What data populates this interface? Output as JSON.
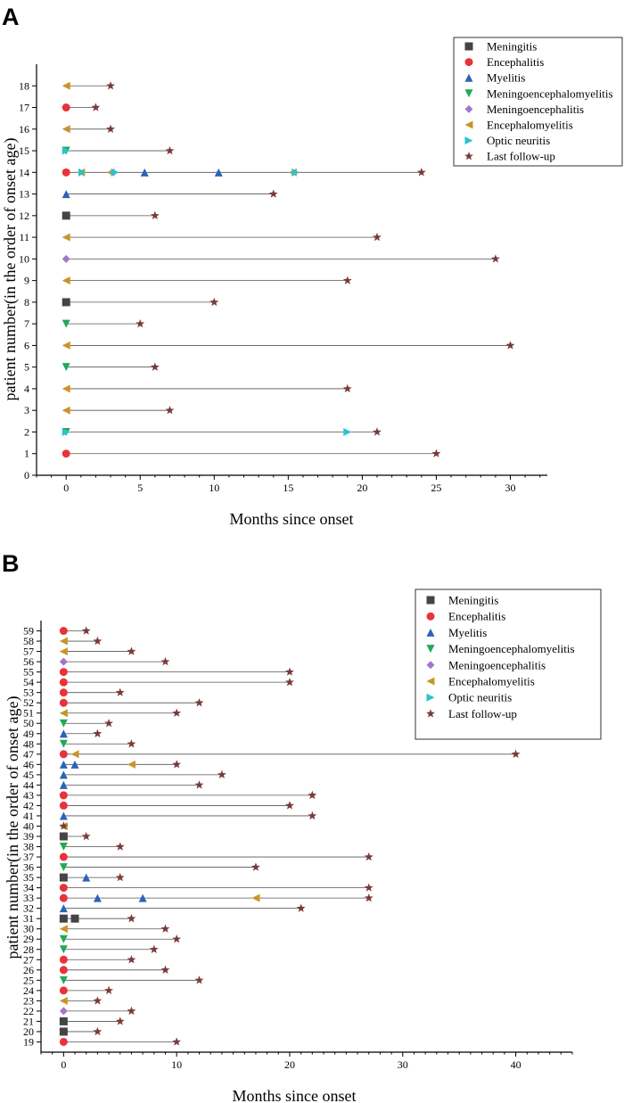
{
  "panels": [
    {
      "label": "A"
    },
    {
      "label": "B"
    }
  ],
  "colors": {
    "Meningitis": "#444444",
    "Encephalitis": "#e8333a",
    "Myelitis": "#2b63b8",
    "Meningoencephalomyelitis": "#22a858",
    "Meningoencephalitis": "#a277c9",
    "Encephalomyelitis": "#c9952a",
    "Optic neuritis": "#2fc1d0",
    "Last follow-up": "#7a3a3a"
  },
  "chart_data": [
    {
      "type": "scatter",
      "title": "",
      "xlabel": "Months since onset",
      "ylabel": "patient number(in the order of onset age)",
      "xlim": [
        -2,
        32.5
      ],
      "ylim": [
        0,
        19
      ],
      "xticks": [
        0,
        5,
        10,
        15,
        20,
        25,
        30
      ],
      "yticks": [
        0,
        1,
        2,
        3,
        4,
        5,
        6,
        7,
        8,
        9,
        10,
        11,
        12,
        13,
        14,
        15,
        16,
        17,
        18
      ],
      "legend": [
        "Meningitis",
        "Encephalitis",
        "Myelitis",
        "Meningoencephalomyelitis",
        "Meningoencephalitis",
        "Encephalomyelitis",
        "Optic neuritis",
        "Last follow-up"
      ],
      "legend_position": "top-right",
      "patients": [
        {
          "id": 1,
          "events": [
            {
              "t": 0,
              "type": "Encephalitis"
            }
          ],
          "last": 25
        },
        {
          "id": 2,
          "events": [
            {
              "t": 0,
              "type": "Meningoencephalomyelitis"
            },
            {
              "t": 0,
              "type": "Optic neuritis"
            },
            {
              "t": 19,
              "type": "Optic neuritis"
            }
          ],
          "last": 21
        },
        {
          "id": 3,
          "events": [
            {
              "t": 0,
              "type": "Encephalomyelitis"
            }
          ],
          "last": 7
        },
        {
          "id": 4,
          "events": [
            {
              "t": 0,
              "type": "Encephalomyelitis"
            }
          ],
          "last": 19
        },
        {
          "id": 5,
          "events": [
            {
              "t": 0,
              "type": "Meningoencephalomyelitis"
            }
          ],
          "last": 6
        },
        {
          "id": 6,
          "events": [
            {
              "t": 0,
              "type": "Encephalomyelitis"
            }
          ],
          "last": 30
        },
        {
          "id": 7,
          "events": [
            {
              "t": 0,
              "type": "Meningoencephalomyelitis"
            }
          ],
          "last": 5
        },
        {
          "id": 8,
          "events": [
            {
              "t": 0,
              "type": "Meningitis"
            }
          ],
          "last": 10
        },
        {
          "id": 9,
          "events": [
            {
              "t": 0,
              "type": "Encephalomyelitis"
            }
          ],
          "last": 19
        },
        {
          "id": 10,
          "events": [
            {
              "t": 0,
              "type": "Meningoencephalitis"
            }
          ],
          "last": 29
        },
        {
          "id": 11,
          "events": [
            {
              "t": 0,
              "type": "Encephalomyelitis"
            }
          ],
          "last": 21
        },
        {
          "id": 12,
          "events": [
            {
              "t": 0,
              "type": "Meningitis"
            }
          ],
          "last": 6
        },
        {
          "id": 13,
          "events": [
            {
              "t": 0,
              "type": "Myelitis"
            }
          ],
          "last": 14
        },
        {
          "id": 14,
          "events": [
            {
              "t": 0,
              "type": "Encephalitis"
            },
            {
              "t": 1,
              "type": "Encephalomyelitis"
            },
            {
              "t": 1.1,
              "type": "Optic neuritis"
            },
            {
              "t": 3,
              "type": "Encephalomyelitis"
            },
            {
              "t": 3.3,
              "type": "Optic neuritis"
            },
            {
              "t": 5.3,
              "type": "Myelitis"
            },
            {
              "t": 10.3,
              "type": "Myelitis"
            },
            {
              "t": 15.3,
              "type": "Encephalomyelitis"
            },
            {
              "t": 15.5,
              "type": "Optic neuritis"
            }
          ],
          "last": 24
        },
        {
          "id": 15,
          "events": [
            {
              "t": 0,
              "type": "Meningoencephalomyelitis"
            },
            {
              "t": 0,
              "type": "Optic neuritis"
            }
          ],
          "last": 7
        },
        {
          "id": 16,
          "events": [
            {
              "t": 0,
              "type": "Encephalomyelitis"
            }
          ],
          "last": 3
        },
        {
          "id": 17,
          "events": [
            {
              "t": 0,
              "type": "Encephalitis"
            }
          ],
          "last": 2
        },
        {
          "id": 18,
          "events": [
            {
              "t": 0,
              "type": "Encephalomyelitis"
            }
          ],
          "last": 3
        }
      ]
    },
    {
      "type": "scatter",
      "title": "",
      "xlabel": "Months since onset",
      "ylabel": "patient number(in the order of onset age)",
      "xlim": [
        -2,
        45
      ],
      "ylim": [
        18,
        60
      ],
      "xticks": [
        0,
        10,
        20,
        30,
        40
      ],
      "yticks": [
        19,
        20,
        21,
        22,
        23,
        24,
        25,
        26,
        27,
        28,
        29,
        30,
        31,
        32,
        33,
        34,
        35,
        36,
        37,
        38,
        39,
        40,
        41,
        42,
        43,
        44,
        45,
        46,
        47,
        48,
        49,
        50,
        51,
        52,
        53,
        54,
        55,
        56,
        57,
        58,
        59
      ],
      "legend": [
        "Meningitis",
        "Encephalitis",
        "Myelitis",
        "Meningoencephalomyelitis",
        "Meningoencephalitis",
        "Encephalomyelitis",
        "Optic neuritis",
        "Last follow-up"
      ],
      "legend_position": "top-right",
      "patients": [
        {
          "id": 19,
          "events": [
            {
              "t": 0,
              "type": "Encephalitis"
            }
          ],
          "last": 10
        },
        {
          "id": 20,
          "events": [
            {
              "t": 0,
              "type": "Meningitis"
            }
          ],
          "last": 3
        },
        {
          "id": 21,
          "events": [
            {
              "t": 0,
              "type": "Meningitis"
            }
          ],
          "last": 5
        },
        {
          "id": 22,
          "events": [
            {
              "t": 0,
              "type": "Meningoencephalitis"
            }
          ],
          "last": 6
        },
        {
          "id": 23,
          "events": [
            {
              "t": 0,
              "type": "Encephalomyelitis"
            }
          ],
          "last": 3
        },
        {
          "id": 24,
          "events": [
            {
              "t": 0,
              "type": "Encephalitis"
            }
          ],
          "last": 4
        },
        {
          "id": 25,
          "events": [
            {
              "t": 0,
              "type": "Meningoencephalomyelitis"
            }
          ],
          "last": 12
        },
        {
          "id": 26,
          "events": [
            {
              "t": 0,
              "type": "Encephalitis"
            }
          ],
          "last": 9
        },
        {
          "id": 27,
          "events": [
            {
              "t": 0,
              "type": "Encephalitis"
            }
          ],
          "last": 6
        },
        {
          "id": 28,
          "events": [
            {
              "t": 0,
              "type": "Meningoencephalomyelitis"
            }
          ],
          "last": 8
        },
        {
          "id": 29,
          "events": [
            {
              "t": 0,
              "type": "Meningoencephalomyelitis"
            }
          ],
          "last": 10
        },
        {
          "id": 30,
          "events": [
            {
              "t": 0,
              "type": "Encephalomyelitis"
            }
          ],
          "last": 9
        },
        {
          "id": 31,
          "events": [
            {
              "t": 0,
              "type": "Meningitis"
            },
            {
              "t": 1,
              "type": "Meningitis"
            }
          ],
          "last": 6
        },
        {
          "id": 32,
          "events": [
            {
              "t": 0,
              "type": "Myelitis"
            }
          ],
          "last": 21
        },
        {
          "id": 33,
          "events": [
            {
              "t": 0,
              "type": "Encephalitis"
            },
            {
              "t": 3,
              "type": "Myelitis"
            },
            {
              "t": 7,
              "type": "Myelitis"
            },
            {
              "t": 17,
              "type": "Encephalomyelitis"
            }
          ],
          "last": 27
        },
        {
          "id": 34,
          "events": [
            {
              "t": 0,
              "type": "Encephalitis"
            }
          ],
          "last": 27
        },
        {
          "id": 35,
          "events": [
            {
              "t": 0,
              "type": "Meningitis"
            },
            {
              "t": 2,
              "type": "Myelitis"
            }
          ],
          "last": 5
        },
        {
          "id": 36,
          "events": [
            {
              "t": 0,
              "type": "Meningoencephalomyelitis"
            }
          ],
          "last": 17
        },
        {
          "id": 37,
          "events": [
            {
              "t": 0,
              "type": "Encephalitis"
            }
          ],
          "last": 27
        },
        {
          "id": 38,
          "events": [
            {
              "t": 0,
              "type": "Meningoencephalomyelitis"
            }
          ],
          "last": 5
        },
        {
          "id": 39,
          "events": [
            {
              "t": 0,
              "type": "Meningitis"
            }
          ],
          "last": 2
        },
        {
          "id": 40,
          "events": [
            {
              "t": 0,
              "type": "Encephalomyelitis"
            }
          ],
          "last": 0
        },
        {
          "id": 41,
          "events": [
            {
              "t": 0,
              "type": "Myelitis"
            }
          ],
          "last": 22
        },
        {
          "id": 42,
          "events": [
            {
              "t": 0,
              "type": "Encephalitis"
            }
          ],
          "last": 20
        },
        {
          "id": 43,
          "events": [
            {
              "t": 0,
              "type": "Encephalitis"
            }
          ],
          "last": 22
        },
        {
          "id": 44,
          "events": [
            {
              "t": 0,
              "type": "Myelitis"
            }
          ],
          "last": 12
        },
        {
          "id": 45,
          "events": [
            {
              "t": 0,
              "type": "Myelitis"
            }
          ],
          "last": 14
        },
        {
          "id": 46,
          "events": [
            {
              "t": 0,
              "type": "Myelitis"
            },
            {
              "t": 1,
              "type": "Myelitis"
            },
            {
              "t": 6,
              "type": "Encephalomyelitis"
            }
          ],
          "last": 10
        },
        {
          "id": 47,
          "events": [
            {
              "t": 0,
              "type": "Encephalitis"
            },
            {
              "t": 1,
              "type": "Encephalomyelitis"
            }
          ],
          "last": 40
        },
        {
          "id": 48,
          "events": [
            {
              "t": 0,
              "type": "Meningoencephalomyelitis"
            }
          ],
          "last": 6
        },
        {
          "id": 49,
          "events": [
            {
              "t": 0,
              "type": "Myelitis"
            }
          ],
          "last": 3
        },
        {
          "id": 50,
          "events": [
            {
              "t": 0,
              "type": "Meningoencephalomyelitis"
            }
          ],
          "last": 4
        },
        {
          "id": 51,
          "events": [
            {
              "t": 0,
              "type": "Encephalomyelitis"
            }
          ],
          "last": 10
        },
        {
          "id": 52,
          "events": [
            {
              "t": 0,
              "type": "Encephalitis"
            }
          ],
          "last": 12
        },
        {
          "id": 53,
          "events": [
            {
              "t": 0,
              "type": "Encephalitis"
            }
          ],
          "last": 5
        },
        {
          "id": 54,
          "events": [
            {
              "t": 0,
              "type": "Encephalitis"
            }
          ],
          "last": 20
        },
        {
          "id": 55,
          "events": [
            {
              "t": 0,
              "type": "Encephalitis"
            }
          ],
          "last": 20
        },
        {
          "id": 56,
          "events": [
            {
              "t": 0,
              "type": "Meningoencephalitis"
            }
          ],
          "last": 9
        },
        {
          "id": 57,
          "events": [
            {
              "t": 0,
              "type": "Encephalomyelitis"
            }
          ],
          "last": 6
        },
        {
          "id": 58,
          "events": [
            {
              "t": 0,
              "type": "Encephalomyelitis"
            }
          ],
          "last": 3
        },
        {
          "id": 59,
          "events": [
            {
              "t": 0,
              "type": "Encephalitis"
            }
          ],
          "last": 2
        }
      ]
    }
  ]
}
